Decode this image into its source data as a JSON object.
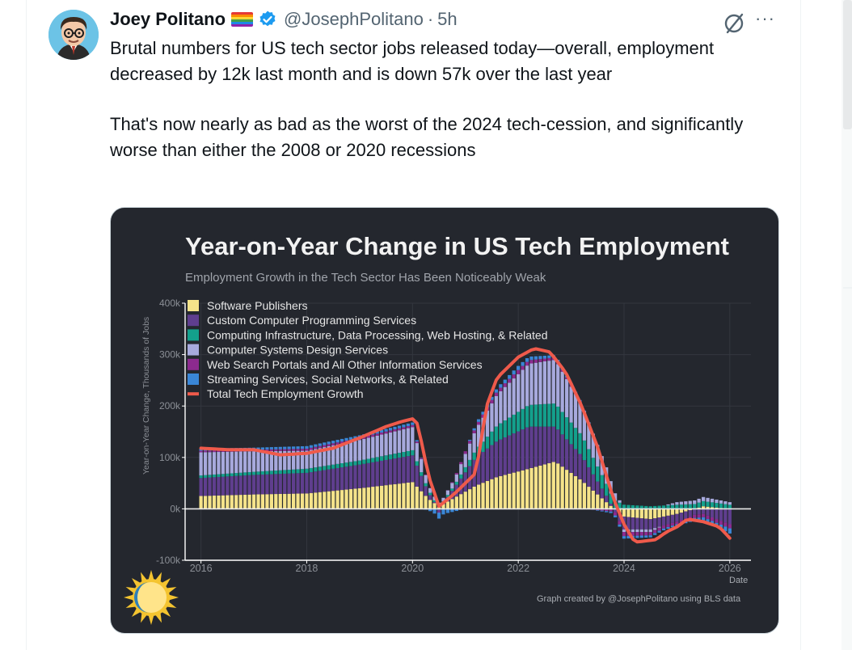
{
  "tweet": {
    "author_name": "Joey Politano",
    "handle": "@JosephPolitano",
    "separator": "·",
    "time": "5h",
    "text_line1": "Brutal numbers for US tech sector jobs released today—overall, employment decreased by 12k last month and is down 57k over the last year",
    "text_line2": "That's now nearly as bad as the worst of the 2024 tech-cession, and significantly worse than either the 2008 or 2020 recessions",
    "more_label": "···"
  },
  "icons": {
    "avatar": "avatar-cartoon-glasses",
    "flag": "rainbow-flag-icon",
    "verified": "verified-badge-icon",
    "grok": "grok-icon",
    "more": "more-options-icon",
    "logo": "sun-logo-icon"
  },
  "colors": {
    "software": "#f5e38a",
    "custom_programming": "#5f3e8e",
    "computing_infra": "#13a08c",
    "systems_design": "#a7a9dd",
    "web_search": "#8c2a8e",
    "streaming": "#3a86d6",
    "total": "#ef5a4b",
    "card_bg": "#24272e"
  },
  "chart_data": {
    "type": "bar",
    "stacked": true,
    "title": "Year-on-Year Change in US Tech Employment",
    "subtitle": "Employment Growth in the Tech Sector Has Been Noticeably Weak",
    "ylabel": "Year-on-Year Change, Thousands of Jobs",
    "xlabel": "Date",
    "credit": "Graph created by @JosephPolitano using BLS data",
    "ylim": [
      -100,
      400
    ],
    "xlim": [
      2015.7,
      2026.4
    ],
    "y_ticks": [
      {
        "value": 400,
        "label": "400k"
      },
      {
        "value": 300,
        "label": "300k"
      },
      {
        "value": 200,
        "label": "200k"
      },
      {
        "value": 100,
        "label": "100k"
      },
      {
        "value": 0,
        "label": "0k"
      },
      {
        "value": -100,
        "label": "-100k"
      }
    ],
    "x_ticks": [
      {
        "value": 2016,
        "label": "2016"
      },
      {
        "value": 2018,
        "label": "2018"
      },
      {
        "value": 2020,
        "label": "2020"
      },
      {
        "value": 2022,
        "label": "2022"
      },
      {
        "value": 2024,
        "label": "2024"
      },
      {
        "value": 2026,
        "label": "2026"
      }
    ],
    "legend_position": "top-left",
    "series": [
      {
        "name": "Software Publishers",
        "key": "software",
        "anchors": [
          [
            2016,
            25
          ],
          [
            2017,
            28
          ],
          [
            2018,
            30
          ],
          [
            2019,
            40
          ],
          [
            2020,
            52
          ],
          [
            2020.3,
            20
          ],
          [
            2020.5,
            5
          ],
          [
            2020.8,
            22
          ],
          [
            2021.2,
            45
          ],
          [
            2021.6,
            62
          ],
          [
            2022.2,
            78
          ],
          [
            2022.7,
            92
          ],
          [
            2023.2,
            55
          ],
          [
            2023.7,
            10
          ],
          [
            2024,
            -15
          ],
          [
            2024.5,
            -20
          ],
          [
            2025,
            -10
          ],
          [
            2025.5,
            5
          ],
          [
            2026,
            0
          ]
        ]
      },
      {
        "name": "Custom Computer Programming Services",
        "key": "custom_programming",
        "anchors": [
          [
            2016,
            35
          ],
          [
            2017,
            38
          ],
          [
            2018,
            40
          ],
          [
            2019,
            46
          ],
          [
            2020,
            52
          ],
          [
            2020.3,
            12
          ],
          [
            2020.5,
            -5
          ],
          [
            2020.8,
            20
          ],
          [
            2021.2,
            55
          ],
          [
            2021.6,
            70
          ],
          [
            2022.2,
            82
          ],
          [
            2022.7,
            68
          ],
          [
            2023.2,
            48
          ],
          [
            2023.7,
            10
          ],
          [
            2024,
            -25
          ],
          [
            2024.5,
            -20
          ],
          [
            2025,
            -15
          ],
          [
            2025.5,
            -10
          ],
          [
            2026,
            -30
          ]
        ]
      },
      {
        "name": "Computing Infrastructure, Data Processing, Web Hosting, & Related",
        "key": "computing_infra",
        "anchors": [
          [
            2016,
            5
          ],
          [
            2017,
            6
          ],
          [
            2018,
            8
          ],
          [
            2019,
            8
          ],
          [
            2020,
            10
          ],
          [
            2020.3,
            5
          ],
          [
            2020.5,
            2
          ],
          [
            2020.8,
            5
          ],
          [
            2021.2,
            15
          ],
          [
            2021.6,
            30
          ],
          [
            2022.2,
            42
          ],
          [
            2022.7,
            45
          ],
          [
            2023.2,
            40
          ],
          [
            2023.7,
            22
          ],
          [
            2024,
            8
          ],
          [
            2024.5,
            5
          ],
          [
            2025,
            8
          ],
          [
            2025.5,
            10
          ],
          [
            2026,
            8
          ]
        ]
      },
      {
        "name": "Computer Systems Design Services",
        "key": "systems_design",
        "anchors": [
          [
            2016,
            45
          ],
          [
            2017,
            40
          ],
          [
            2018,
            35
          ],
          [
            2019,
            40
          ],
          [
            2020,
            45
          ],
          [
            2020.3,
            10
          ],
          [
            2020.5,
            5
          ],
          [
            2020.8,
            12
          ],
          [
            2021.2,
            40
          ],
          [
            2021.6,
            60
          ],
          [
            2022.2,
            80
          ],
          [
            2022.7,
            85
          ],
          [
            2023.2,
            60
          ],
          [
            2023.7,
            30
          ],
          [
            2024,
            -5
          ],
          [
            2024.5,
            -5
          ],
          [
            2025,
            5
          ],
          [
            2025.5,
            8
          ],
          [
            2026,
            5
          ]
        ]
      },
      {
        "name": "Web Search Portals and All Other Information Services",
        "key": "web_search",
        "anchors": [
          [
            2016,
            3
          ],
          [
            2017,
            3
          ],
          [
            2018,
            4
          ],
          [
            2019,
            4
          ],
          [
            2020,
            4
          ],
          [
            2020.5,
            -2
          ],
          [
            2021,
            5
          ],
          [
            2022,
            8
          ],
          [
            2023,
            3
          ],
          [
            2024,
            -8
          ],
          [
            2025,
            -5
          ],
          [
            2026,
            -8
          ]
        ]
      },
      {
        "name": "Streaming Services, Social Networks, & Related",
        "key": "streaming",
        "anchors": [
          [
            2016,
            4
          ],
          [
            2017,
            4
          ],
          [
            2018,
            5
          ],
          [
            2019,
            5
          ],
          [
            2020,
            5
          ],
          [
            2020.3,
            -3
          ],
          [
            2020.5,
            -12
          ],
          [
            2020.8,
            -5
          ],
          [
            2021.2,
            5
          ],
          [
            2022,
            8
          ],
          [
            2023,
            3
          ],
          [
            2024,
            -5
          ],
          [
            2025,
            -3
          ],
          [
            2026,
            -10
          ]
        ]
      }
    ],
    "total_line": {
      "name": "Total Tech Employment Growth",
      "key": "total",
      "anchors": [
        [
          2016,
          118
        ],
        [
          2016.5,
          115
        ],
        [
          2017,
          115
        ],
        [
          2017.5,
          105
        ],
        [
          2018,
          108
        ],
        [
          2018.5,
          118
        ],
        [
          2019,
          138
        ],
        [
          2019.5,
          160
        ],
        [
          2019.8,
          170
        ],
        [
          2020,
          175
        ],
        [
          2020.1,
          165
        ],
        [
          2020.3,
          65
        ],
        [
          2020.5,
          5
        ],
        [
          2020.8,
          30
        ],
        [
          2021,
          50
        ],
        [
          2021.2,
          70
        ],
        [
          2021.4,
          200
        ],
        [
          2021.6,
          255
        ],
        [
          2022,
          295
        ],
        [
          2022.3,
          312
        ],
        [
          2022.6,
          305
        ],
        [
          2022.9,
          265
        ],
        [
          2023.2,
          200
        ],
        [
          2023.5,
          120
        ],
        [
          2023.8,
          20
        ],
        [
          2024,
          -30
        ],
        [
          2024.2,
          -65
        ],
        [
          2024.6,
          -60
        ],
        [
          2024.8,
          -45
        ],
        [
          2025,
          -35
        ],
        [
          2025.2,
          -20
        ],
        [
          2025.5,
          -25
        ],
        [
          2025.8,
          -35
        ],
        [
          2026,
          -57
        ]
      ]
    }
  }
}
